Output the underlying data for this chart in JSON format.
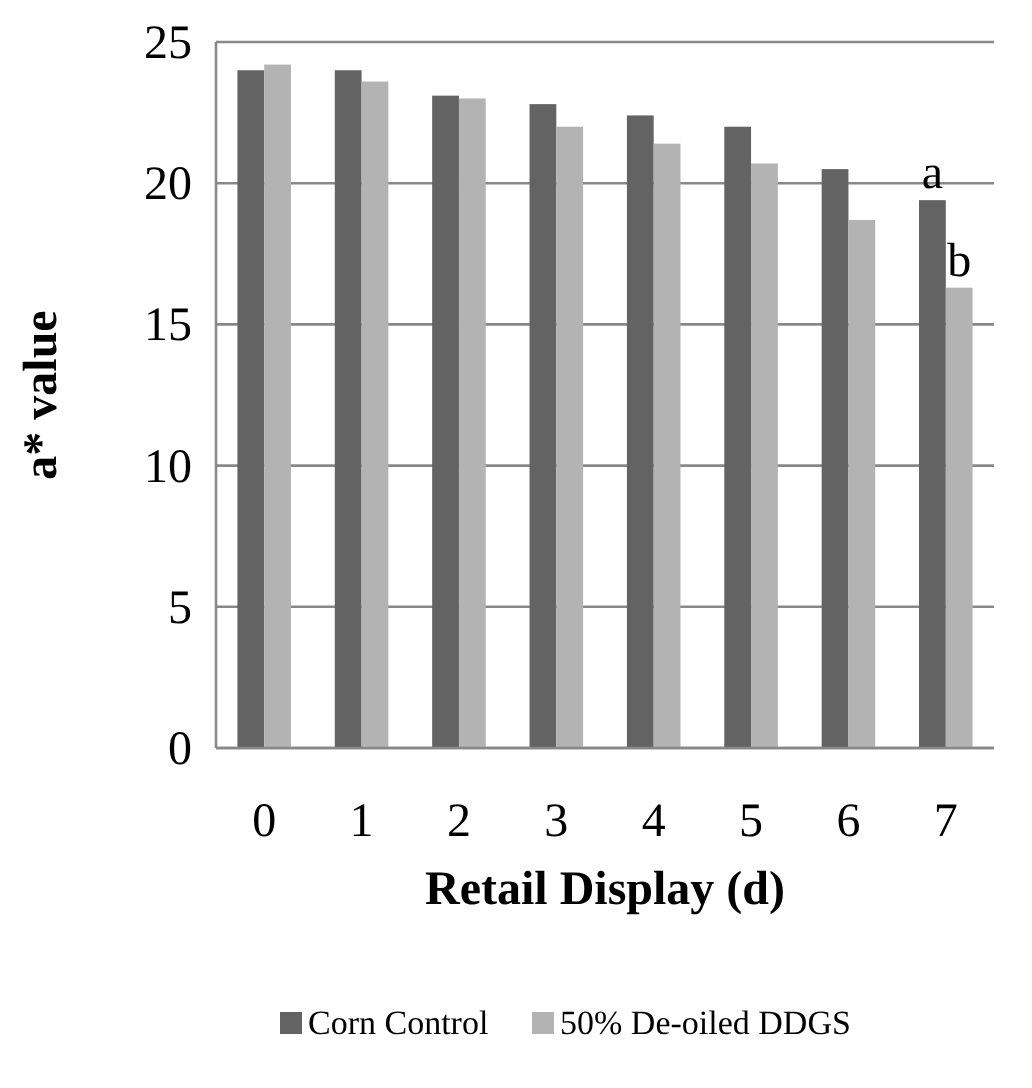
{
  "chart_data": {
    "type": "bar",
    "xlabel": "Retail Display (d)",
    "ylabel": "a* value",
    "categories": [
      "0",
      "1",
      "2",
      "3",
      "4",
      "5",
      "6",
      "7"
    ],
    "series": [
      {
        "name": "Corn Control",
        "color": "#636363",
        "values": [
          24.0,
          24.0,
          23.1,
          22.8,
          22.4,
          22.0,
          20.5,
          19.4
        ]
      },
      {
        "name": "50% De-oiled DDGS",
        "color": "#b3b3b3",
        "values": [
          24.2,
          23.6,
          23.0,
          22.0,
          21.4,
          20.7,
          18.7,
          16.3
        ]
      }
    ],
    "ylim": [
      0,
      25
    ],
    "yticks": [
      0,
      5,
      10,
      15,
      20,
      25
    ],
    "grid": "y",
    "legend": "bottom",
    "annotations": [
      {
        "text": "a",
        "x": "7",
        "y": 19.4
      },
      {
        "text": "b",
        "x": "7",
        "y": 16.3
      }
    ]
  }
}
